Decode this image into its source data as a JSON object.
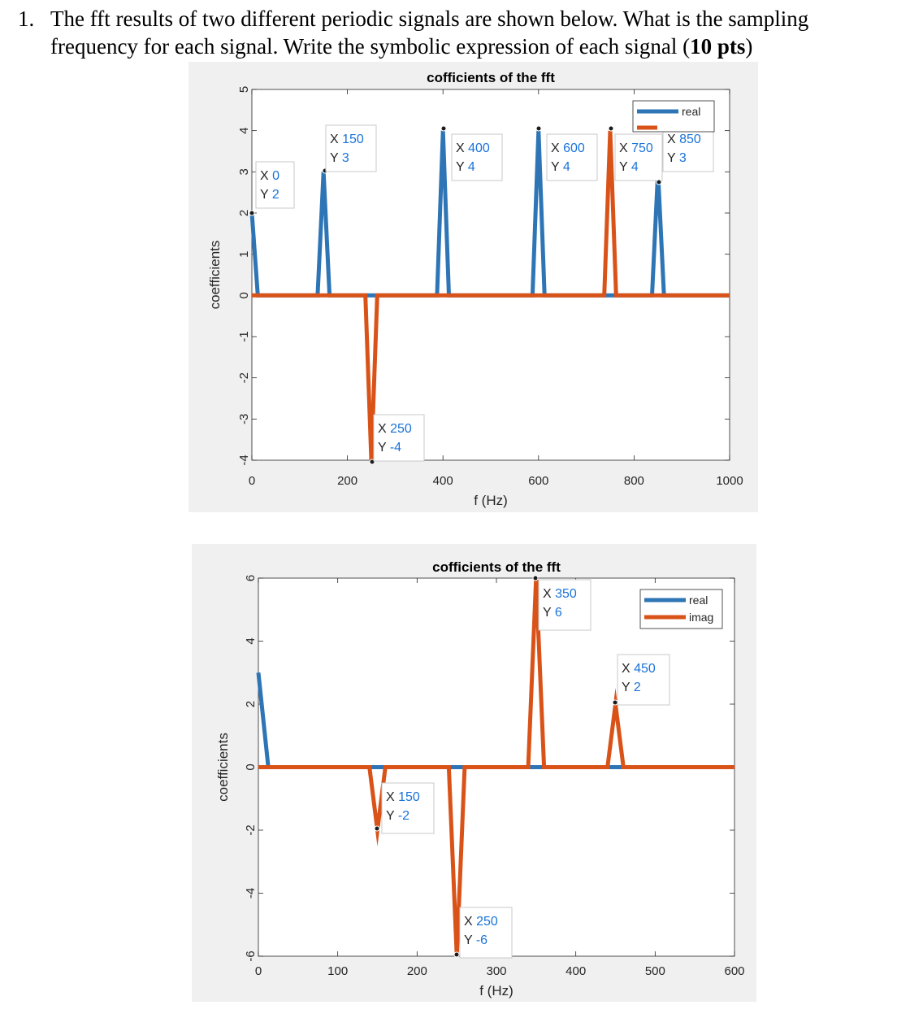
{
  "question": {
    "number": "1.",
    "line1": "The fft results of two different periodic signals are shown below. What is the sampling",
    "line2_text": "frequency for each signal. Write the symbolic expression of each signal (",
    "line2_points": "10 pts",
    "line2_end": ")"
  },
  "chart_data": [
    {
      "type": "line",
      "title": "cofficients of the fft",
      "xlabel": "f (Hz)",
      "ylabel": "coefficients",
      "xlim": [
        0,
        1000
      ],
      "ylim": [
        -4,
        5
      ],
      "xticks": [
        "0",
        "200",
        "400",
        "600",
        "800",
        "1000"
      ],
      "yticks": [
        "5",
        "4",
        "3",
        "2",
        "1",
        "0",
        "-1",
        "-2",
        "-3",
        "-4"
      ],
      "legend": {
        "position": "top-right",
        "entries": [
          "real"
        ]
      },
      "series": [
        {
          "name": "real",
          "color": "#2e75b6",
          "x": [
            0,
            12.5,
            137.5,
            150,
            162.5,
            387.5,
            400,
            412.5,
            587.5,
            600,
            612.5,
            837.5,
            850,
            862.5,
            1000
          ],
          "y": [
            2,
            0,
            0,
            3,
            0,
            0,
            4,
            0,
            0,
            4,
            0,
            0,
            3,
            0,
            0
          ]
        },
        {
          "name": "",
          "color": "#d95319",
          "x": [
            0,
            237.5,
            250,
            262.5,
            737.5,
            750,
            762.5,
            1000
          ],
          "y": [
            0,
            0,
            -4,
            0,
            0,
            4,
            0,
            0
          ]
        }
      ],
      "datatips": [
        {
          "x": "X 0",
          "y": "Y 2"
        },
        {
          "x": "X 150",
          "y": "Y 3"
        },
        {
          "x": "X 400",
          "y": "Y 4"
        },
        {
          "x": "X 600",
          "y": "Y 4"
        },
        {
          "x": "X 750",
          "y": "Y 4"
        },
        {
          "x": "X 850",
          "y": "Y 3"
        },
        {
          "x": "X 250",
          "y": "Y -4"
        }
      ]
    },
    {
      "type": "line",
      "title": "cofficients of the fft",
      "xlabel": "f (Hz)",
      "ylabel": "coefficients",
      "xlim": [
        0,
        600
      ],
      "ylim": [
        -6,
        6
      ],
      "xticks": [
        "0",
        "100",
        "200",
        "300",
        "400",
        "500",
        "600"
      ],
      "yticks": [
        "6",
        "4",
        "2",
        "0",
        "-2",
        "-4",
        "-6"
      ],
      "legend": {
        "position": "top-right",
        "entries": [
          "real",
          "imag"
        ]
      },
      "series": [
        {
          "name": "real",
          "color": "#2e75b6",
          "x": [
            0,
            12.5,
            600
          ],
          "y": [
            3,
            0,
            0
          ]
        },
        {
          "name": "imag",
          "color": "#d95319",
          "x": [
            0,
            140,
            150,
            160,
            240,
            250,
            260,
            340,
            350,
            360,
            440,
            450,
            460,
            600
          ],
          "y": [
            0,
            0,
            -2,
            0,
            0,
            -6,
            0,
            0,
            6,
            0,
            0,
            2,
            0,
            0
          ]
        }
      ],
      "datatips": [
        {
          "x": "X 350",
          "y": "Y 6"
        },
        {
          "x": "X 450",
          "y": "Y 2"
        },
        {
          "x": "X 150",
          "y": "Y -2"
        },
        {
          "x": "X 250",
          "y": "Y -6"
        }
      ]
    }
  ]
}
